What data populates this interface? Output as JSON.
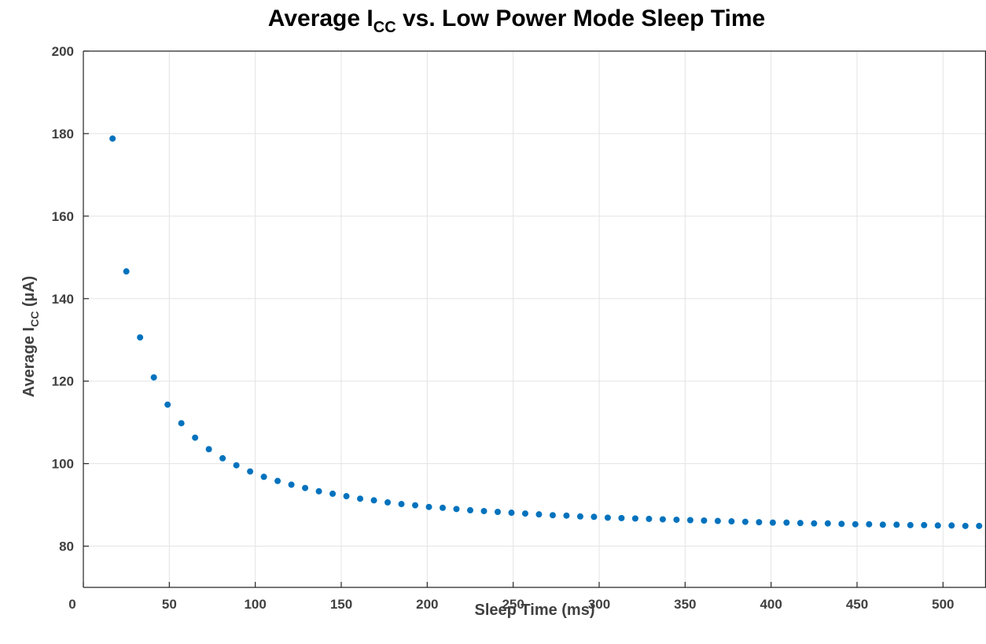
{
  "chart_data": {
    "type": "scatter",
    "title": {
      "main": "Average I",
      "sub": "CC",
      "rest": " vs. Low Power Mode Sleep Time"
    },
    "xlabel": "Sleep Time (ms)",
    "ylabel": {
      "main": "Average I",
      "sub": "CC",
      "rest": " (µA)"
    },
    "xlim": [
      0,
      525
    ],
    "ylim": [
      70,
      200
    ],
    "xticks": [
      0,
      50,
      100,
      150,
      200,
      250,
      300,
      350,
      400,
      450,
      500
    ],
    "yticks": [
      80,
      100,
      120,
      140,
      160,
      180,
      200
    ],
    "grid": true,
    "marker_color": "#0072BD",
    "series": [
      {
        "x": [
          17,
          25,
          33,
          41,
          49,
          57,
          65,
          73,
          81,
          89,
          97,
          105,
          113,
          121,
          129,
          137,
          145,
          153,
          161,
          169,
          177,
          185,
          193,
          201,
          209,
          217,
          225,
          233,
          241,
          249,
          257,
          265,
          273,
          281,
          289,
          297,
          305,
          313,
          321,
          329,
          337,
          345,
          353,
          361,
          369,
          377,
          385,
          393,
          401,
          409,
          417,
          425,
          433,
          441,
          449,
          457,
          465,
          473,
          481,
          489,
          497,
          505,
          513,
          521
        ],
        "y": [
          178.8,
          146.6,
          130.6,
          120.9,
          114.3,
          109.8,
          106.3,
          103.5,
          101.3,
          99.6,
          98.1,
          96.8,
          95.8,
          94.9,
          94.1,
          93.3,
          92.7,
          92.1,
          91.5,
          91.1,
          90.6,
          90.2,
          89.9,
          89.5,
          89.3,
          89.0,
          88.7,
          88.5,
          88.3,
          88.1,
          87.9,
          87.7,
          87.5,
          87.4,
          87.2,
          87.1,
          86.9,
          86.8,
          86.7,
          86.6,
          86.5,
          86.4,
          86.3,
          86.2,
          86.1,
          86.0,
          85.9,
          85.8,
          85.7,
          85.7,
          85.6,
          85.5,
          85.5,
          85.4,
          85.3,
          85.3,
          85.2,
          85.2,
          85.1,
          85.1,
          85.0,
          85.0,
          84.9,
          84.9
        ]
      }
    ]
  }
}
